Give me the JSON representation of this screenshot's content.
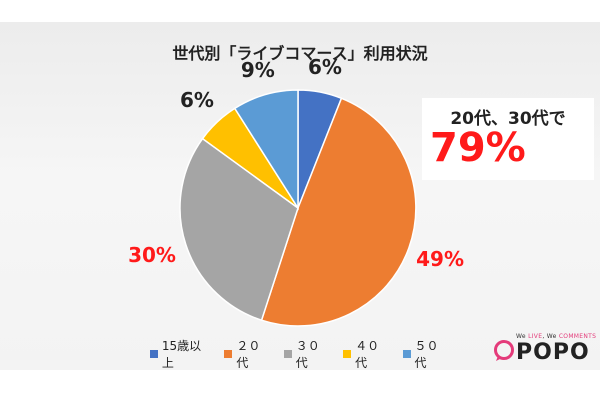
{
  "chart_data": {
    "type": "pie",
    "title": "世代別「ライブコマース」利用状況",
    "slices": [
      {
        "name": "15歳以上",
        "value": 6,
        "label": "6%",
        "color": "#4472c4",
        "label_color": "#222222"
      },
      {
        "name": "２０代",
        "value": 49,
        "label": "49%",
        "color": "#ed7d31",
        "label_color": "#ff1a1a"
      },
      {
        "name": "３０代",
        "value": 30,
        "label": "30%",
        "color": "#a5a5a5",
        "label_color": "#ff1a1a"
      },
      {
        "name": "４０代",
        "value": 6,
        "label": "6%",
        "color": "#ffc000",
        "label_color": "#222222"
      },
      {
        "name": "５０代",
        "value": 9,
        "label": "9%",
        "color": "#5b9bd5",
        "label_color": "#222222"
      }
    ],
    "legend_position": "bottom",
    "start": "top",
    "direction": "clockwise"
  },
  "callout": {
    "line1": "20代、30代で",
    "line2": "79%"
  },
  "legend": [
    {
      "label": "15歳以上",
      "color": "#4472c4"
    },
    {
      "label": "２０代",
      "color": "#ed7d31"
    },
    {
      "label": "３０代",
      "color": "#a5a5a5"
    },
    {
      "label": "４０代",
      "color": "#ffc000"
    },
    {
      "label": "５０代",
      "color": "#5b9bd5"
    }
  ],
  "brand": {
    "tagline_prefix": "We ",
    "tagline_live": "LIVE",
    "tagline_mid": ", We ",
    "tagline_comments": "COMMENTS",
    "logo": "POPO",
    "accent": "#e43b7a"
  }
}
